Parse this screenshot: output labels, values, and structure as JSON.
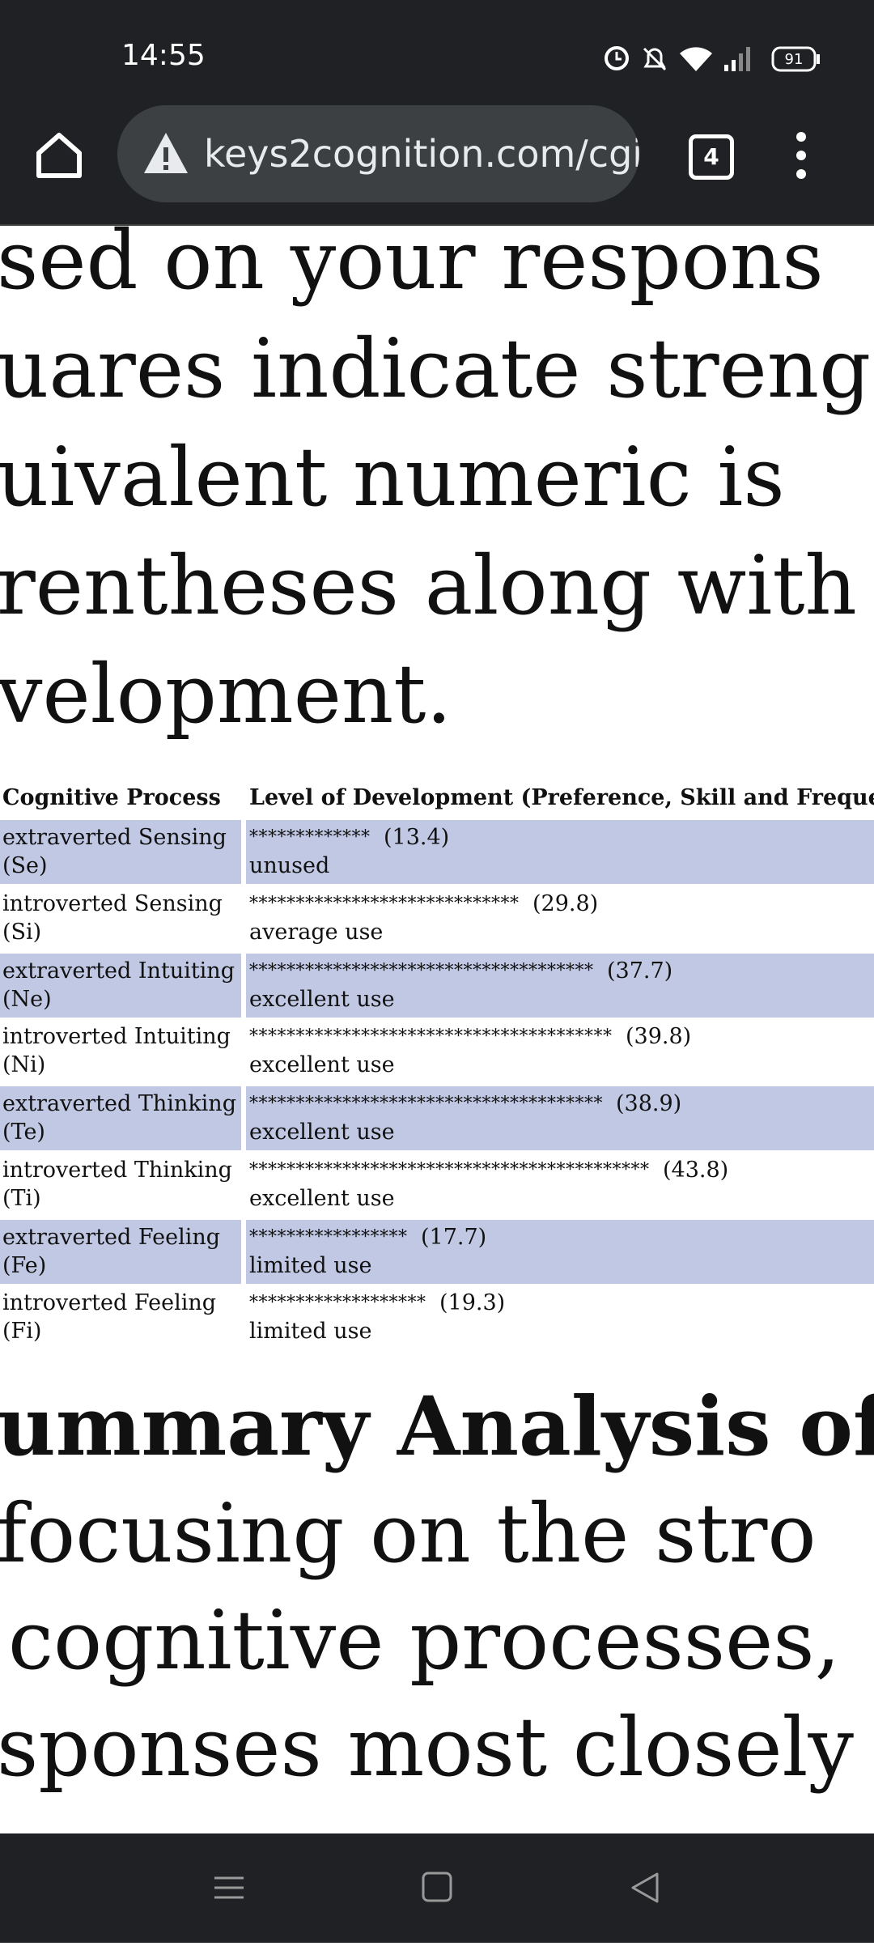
{
  "status_bar": {
    "time": "14:55",
    "battery": "91"
  },
  "browser": {
    "url": "keys2cognition.com/cgi",
    "tab_count": "4"
  },
  "intro_lines": [
    "sed on your respons",
    "uares indicate streng",
    "uivalent numeric is",
    "rentheses along with",
    "velopment."
  ],
  "table": {
    "headers": [
      "Cognitive Process",
      "Level of Development (Preference, Skill and Frequency)"
    ],
    "rows": [
      [
        "extraverted Sensing (Se)",
        "*************",
        "(13.4)",
        "unused"
      ],
      [
        "introverted Sensing (Si)",
        "*****************************",
        "(29.8)",
        "average use"
      ],
      [
        "extraverted Intuiting (Ne)",
        "*************************************",
        "(37.7)",
        "excellent use"
      ],
      [
        "introverted Intuiting (Ni)",
        "***************************************",
        "(39.8)",
        "excellent use"
      ],
      [
        "extraverted Thinking (Te)",
        "**************************************",
        "(38.9)",
        "excellent use"
      ],
      [
        "introverted Thinking (Ti)",
        "*******************************************",
        "(43.8)",
        "excellent use"
      ],
      [
        "extraverted Feeling (Fe)",
        "*****************",
        "(17.7)",
        "limited use"
      ],
      [
        "introverted Feeling (Fi)",
        "*******************",
        "(19.3)",
        "limited use"
      ]
    ]
  },
  "summary": {
    "heading": "ummary Analysis of",
    "lines": [
      "focusing on the stro",
      "cognitive processes,",
      "sponses most closely"
    ]
  }
}
